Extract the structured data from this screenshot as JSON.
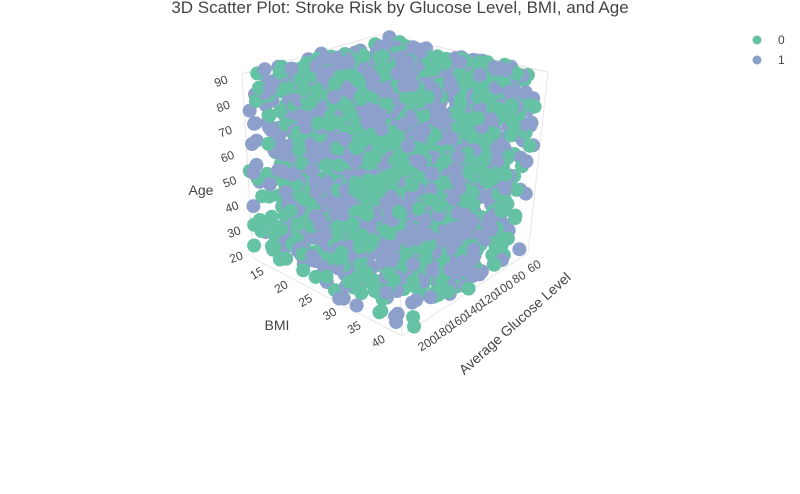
{
  "chart_data": {
    "type": "scatter",
    "subtype": "3d-scatter",
    "title": "3D Scatter Plot: Stroke Risk by Glucose Level, BMI, and Age",
    "x_axis": {
      "label": "Average Glucose Level",
      "ticks": [
        "60",
        "80",
        "100",
        "120",
        "140",
        "160",
        "180",
        "200"
      ],
      "range": [
        55,
        210
      ]
    },
    "y_axis": {
      "label": "BMI",
      "ticks": [
        "15",
        "20",
        "25",
        "30",
        "35",
        "40"
      ],
      "range": [
        14,
        42
      ]
    },
    "z_axis": {
      "label": "Age",
      "ticks": [
        "20",
        "30",
        "40",
        "50",
        "60",
        "70",
        "80",
        "90"
      ],
      "range": [
        18,
        92
      ]
    },
    "legend": {
      "position": "top-right"
    },
    "series": [
      {
        "name": "0",
        "color": "#66c2a5"
      },
      {
        "name": "1",
        "color": "#8da0cb"
      }
    ],
    "points_per_series": 1400,
    "marker": "circle",
    "note_density": "dense cloud filling the full cube"
  }
}
